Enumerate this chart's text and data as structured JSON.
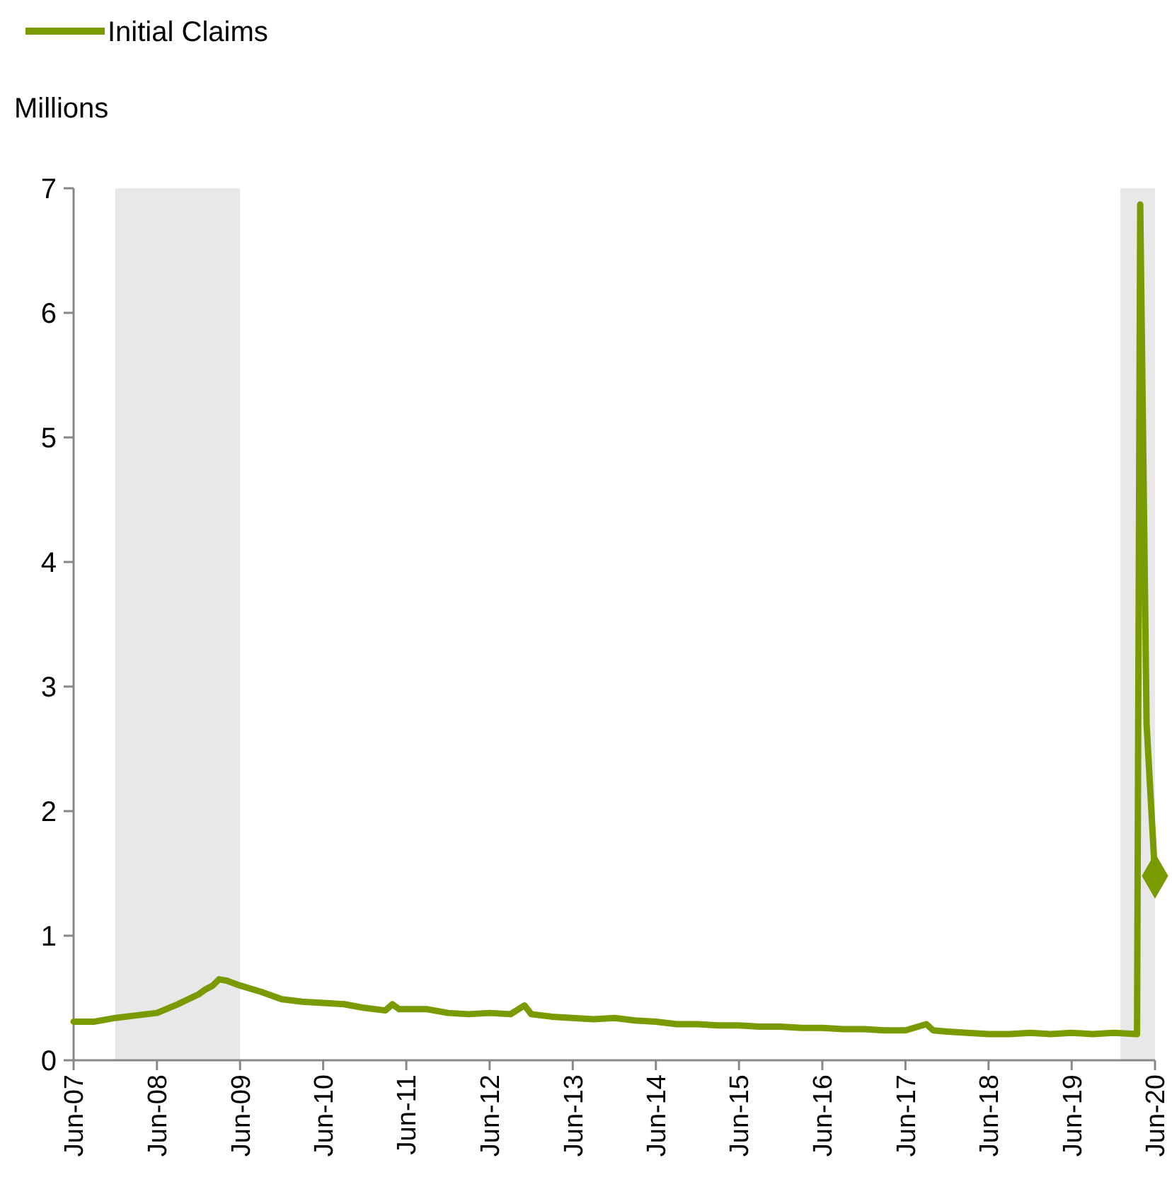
{
  "chart_data": {
    "type": "line",
    "ylabel": "Millions",
    "legend": "top left",
    "grid": false,
    "xlim": [
      "2007-06",
      "2020-06"
    ],
    "xticks": [
      {
        "value": "2007-06",
        "label": "Jun-07"
      },
      {
        "value": "2008-06",
        "label": "Jun-08"
      },
      {
        "value": "2009-06",
        "label": "Jun-09"
      },
      {
        "value": "2010-06",
        "label": "Jun-10"
      },
      {
        "value": "2011-06",
        "label": "Jun-11"
      },
      {
        "value": "2012-06",
        "label": "Jun-12"
      },
      {
        "value": "2013-06",
        "label": "Jun-13"
      },
      {
        "value": "2014-06",
        "label": "Jun-14"
      },
      {
        "value": "2015-06",
        "label": "Jun-15"
      },
      {
        "value": "2016-06",
        "label": "Jun-16"
      },
      {
        "value": "2017-06",
        "label": "Jun-17"
      },
      {
        "value": "2018-06",
        "label": "Jun-18"
      },
      {
        "value": "2019-06",
        "label": "Jun-19"
      },
      {
        "value": "2020-06",
        "label": "Jun-20"
      }
    ],
    "ylim": [
      0,
      7
    ],
    "yticks": [
      0,
      1,
      2,
      3,
      4,
      5,
      6,
      7
    ],
    "bands": [
      {
        "axis": "x",
        "from": "2007-12",
        "to": "2009-06",
        "color": "#e8e8e8"
      },
      {
        "axis": "x",
        "from": "2020-01",
        "to": "2020-06",
        "color": "#e8e8e8"
      }
    ],
    "series": [
      {
        "name": "Initial Claims",
        "color": "#7a9a01",
        "line_style": "solid",
        "marker": "none",
        "x": [
          "2007-06",
          "2007-09",
          "2007-12",
          "2008-03",
          "2008-06",
          "2008-09",
          "2008-12",
          "2009-01",
          "2009-02",
          "2009-03",
          "2009-04",
          "2009-06",
          "2009-09",
          "2009-12",
          "2010-03",
          "2010-06",
          "2010-09",
          "2010-12",
          "2011-03",
          "2011-04",
          "2011-05",
          "2011-09",
          "2011-12",
          "2012-03",
          "2012-06",
          "2012-09",
          "2012-11",
          "2012-12",
          "2013-03",
          "2013-06",
          "2013-09",
          "2013-12",
          "2014-03",
          "2014-06",
          "2014-09",
          "2014-12",
          "2015-03",
          "2015-06",
          "2015-09",
          "2015-12",
          "2016-03",
          "2016-06",
          "2016-09",
          "2016-12",
          "2017-03",
          "2017-06",
          "2017-09",
          "2017-10",
          "2017-12",
          "2018-03",
          "2018-06",
          "2018-09",
          "2018-12",
          "2019-03",
          "2019-06",
          "2019-09",
          "2019-12",
          "2020-03-14",
          "2020-03-28",
          "2020-04-25",
          "2020-06-01"
        ],
        "values": [
          0.31,
          0.31,
          0.34,
          0.36,
          0.38,
          0.45,
          0.53,
          0.57,
          0.6,
          0.65,
          0.64,
          0.6,
          0.55,
          0.49,
          0.47,
          0.46,
          0.45,
          0.42,
          0.4,
          0.45,
          0.41,
          0.41,
          0.38,
          0.37,
          0.38,
          0.37,
          0.44,
          0.37,
          0.35,
          0.34,
          0.33,
          0.34,
          0.32,
          0.31,
          0.29,
          0.29,
          0.28,
          0.28,
          0.27,
          0.27,
          0.26,
          0.26,
          0.25,
          0.25,
          0.24,
          0.24,
          0.29,
          0.24,
          0.23,
          0.22,
          0.21,
          0.21,
          0.22,
          0.21,
          0.22,
          0.21,
          0.22,
          0.21,
          6.87,
          2.7,
          1.48
        ]
      },
      {
        "type": "scatter",
        "color": "#7a9a01",
        "marker": "diamond",
        "x": [
          "2020-06-01"
        ],
        "values": [
          1.48
        ]
      }
    ]
  }
}
